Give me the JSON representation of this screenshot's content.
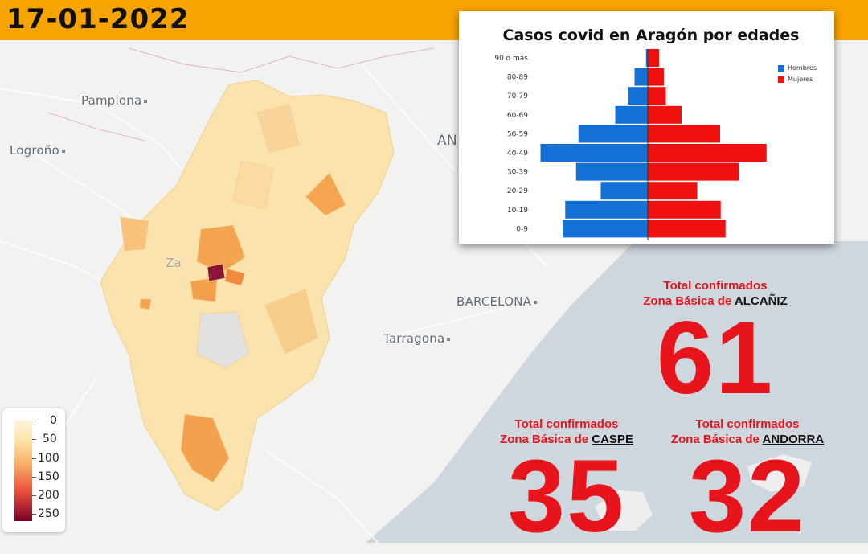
{
  "header": {
    "date": "17-01-2022"
  },
  "map": {
    "cities": [
      "Pamplona",
      "Logroño",
      "BARCELONA",
      "Tarragona",
      "AN",
      "Za"
    ],
    "region": "Aragón"
  },
  "scale_legend": {
    "labels": [
      "0",
      "50",
      "100",
      "150",
      "200",
      "250"
    ],
    "colors": [
      "#fdf5e0",
      "#fde8b0",
      "#f9b56b",
      "#e9513a",
      "#b0102e",
      "#7a0026"
    ]
  },
  "totals": [
    {
      "label": "Total confirmados",
      "zone_prefix": "Zona Básica de",
      "zone": "ALCAÑIZ",
      "value": "61"
    },
    {
      "label": "Total confirmados",
      "zone_prefix": "Zona Básica de",
      "zone": "CASPE",
      "value": "35"
    },
    {
      "label": "Total confirmados",
      "zone_prefix": "Zona Básica de",
      "zone": "ANDORRA",
      "value": "32"
    }
  ],
  "chart_data": {
    "type": "bar",
    "orientation": "horizontal-pyramid",
    "title": "Casos covid en Aragón por edades",
    "categories": [
      "90 o más",
      "80-89",
      "70-79",
      "60-69",
      "50-59",
      "40-49",
      "30-39",
      "20-29",
      "10-19",
      "0-9"
    ],
    "series": [
      {
        "name": "Hombres",
        "color": "#1570d6",
        "values": [
          3,
          22,
          33,
          54,
          115,
          178,
          119,
          78,
          137,
          141
        ]
      },
      {
        "name": "Mujeres",
        "color": "#f01010",
        "values": [
          19,
          27,
          30,
          56,
          120,
          197,
          151,
          82,
          121,
          129
        ]
      }
    ],
    "legend_position": "right",
    "grid": false
  }
}
